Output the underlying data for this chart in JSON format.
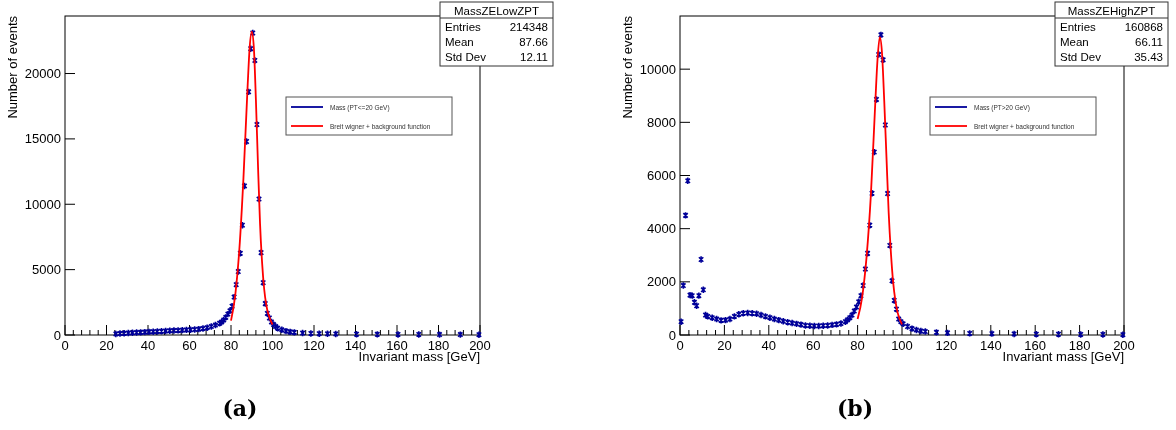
{
  "chart_data": [
    {
      "type": "scatter",
      "xlabel": "Invariant mass [GeV]",
      "ylabel": "Number of events",
      "xlim": [
        0,
        200
      ],
      "xticks": [
        0,
        20,
        40,
        60,
        80,
        100,
        120,
        140,
        160,
        180,
        200
      ],
      "ylim": [
        0,
        24400
      ],
      "yticks": [
        0,
        5000,
        10000,
        15000,
        20000
      ],
      "grid": false,
      "legend": "top right",
      "annotations": [
        "MassZELowZPT",
        "Entries",
        "214348",
        "Mean",
        "87.66",
        "Std Dev",
        "12.11",
        "(a)"
      ],
      "series": [
        {
          "name": "Mass (PT<=20 GeV)",
          "marker": "cross",
          "color": "#000099",
          "x": [
            24.5,
            26.5,
            28.5,
            30.5,
            32.5,
            34.5,
            36.5,
            38.5,
            40.5,
            42.5,
            44.5,
            46.5,
            48.5,
            50.5,
            52.5,
            54.5,
            56.5,
            58.5,
            60.5,
            62.5,
            64.5,
            66.5,
            68.5,
            70.5,
            72.5,
            74.5,
            75.5,
            76.5,
            77.5,
            78.5,
            79.5,
            80.5,
            81.5,
            82.5,
            83.5,
            84.5,
            85.5,
            86.5,
            87.5,
            88.5,
            89.5,
            90.5,
            91.5,
            92.5,
            93.5,
            94.5,
            95.5,
            96.5,
            97.5,
            98.5,
            99.5,
            100.5,
            101.5,
            102.5,
            104.5,
            106.5,
            108.5,
            110.5,
            114.5,
            118.5,
            122.5,
            126.5,
            130.5,
            140.5,
            150.5,
            160.5,
            170.5,
            180.5,
            190.5,
            199.5
          ],
          "values": [
            80,
            110,
            130,
            150,
            170,
            190,
            200,
            220,
            240,
            250,
            270,
            290,
            310,
            330,
            340,
            350,
            370,
            390,
            400,
            420,
            450,
            500,
            560,
            650,
            760,
            900,
            1000,
            1150,
            1350,
            1600,
            1850,
            2200,
            2900,
            3850,
            4850,
            6250,
            8400,
            11400,
            14800,
            18600,
            21900,
            23100,
            21000,
            16100,
            10400,
            6300,
            4000,
            2400,
            1650,
            1300,
            1000,
            800,
            650,
            520,
            400,
            300,
            240,
            200,
            150,
            120,
            100,
            90,
            80,
            60,
            50,
            40,
            40,
            30,
            30,
            20
          ]
        },
        {
          "name": "Breit wigner + background function",
          "type": "line",
          "color": "#ff0000",
          "x": [
            80,
            82,
            84,
            86,
            88,
            89,
            90,
            91,
            92,
            93,
            94,
            95,
            96,
            97,
            98,
            100
          ],
          "values": [
            1100,
            3000,
            6500,
            12000,
            19000,
            22000,
            23200,
            22000,
            18000,
            13000,
            8500,
            5500,
            3500,
            2300,
            1600,
            800
          ]
        }
      ]
    },
    {
      "type": "scatter",
      "xlabel": "Invariant mass [GeV]",
      "ylabel": "Number of events",
      "xlim": [
        0,
        200
      ],
      "xticks": [
        0,
        20,
        40,
        60,
        80,
        100,
        120,
        140,
        160,
        180,
        200
      ],
      "ylim": [
        0,
        12000
      ],
      "yticks": [
        0,
        2000,
        4000,
        6000,
        8000,
        10000
      ],
      "grid": false,
      "legend": "top right",
      "annotations": [
        "MassZEHighZPT",
        "Entries",
        "160868",
        "Mean",
        "66.11",
        "Std Dev",
        "35.43",
        "(b)"
      ],
      "series": [
        {
          "name": "Mass (PT>20 GeV)",
          "marker": "cross",
          "color": "#000099",
          "x": [
            0.5,
            1.5,
            2.5,
            3.5,
            4.5,
            5.5,
            6.5,
            7.5,
            8.5,
            9.5,
            10.5,
            11.5,
            12.5,
            14.5,
            16.5,
            18.5,
            20.5,
            22.5,
            24.5,
            26.5,
            28.5,
            30.5,
            32.5,
            34.5,
            36.5,
            38.5,
            40.5,
            42.5,
            44.5,
            46.5,
            48.5,
            50.5,
            52.5,
            54.5,
            56.5,
            58.5,
            60.5,
            62.5,
            64.5,
            66.5,
            68.5,
            70.5,
            72.5,
            74.5,
            75.5,
            76.5,
            77.5,
            78.5,
            79.5,
            80.5,
            81.5,
            82.5,
            83.5,
            84.5,
            85.5,
            86.5,
            87.5,
            88.5,
            89.5,
            90.5,
            91.5,
            92.5,
            93.5,
            94.5,
            95.5,
            96.5,
            97.5,
            98.5,
            99.5,
            100.5,
            102.5,
            104.5,
            106.5,
            108.5,
            110.5,
            115.5,
            120.5,
            130.5,
            140.5,
            150.5,
            160.5,
            170.5,
            180.5,
            190.5,
            199.5
          ],
          "values": [
            500,
            1860,
            4500,
            5800,
            1500,
            1480,
            1230,
            1100,
            1480,
            2840,
            1700,
            750,
            700,
            650,
            600,
            550,
            560,
            600,
            700,
            780,
            820,
            830,
            820,
            800,
            750,
            700,
            650,
            600,
            560,
            520,
            480,
            450,
            420,
            390,
            360,
            350,
            340,
            340,
            350,
            360,
            380,
            400,
            430,
            500,
            570,
            650,
            750,
            900,
            1050,
            1250,
            1480,
            1860,
            2480,
            3070,
            4130,
            5330,
            6880,
            8860,
            10550,
            11290,
            10350,
            7900,
            5320,
            3370,
            2040,
            1300,
            970,
            600,
            500,
            420,
            320,
            240,
            190,
            150,
            130,
            100,
            80,
            60,
            50,
            40,
            30,
            30,
            20,
            20,
            10
          ]
        },
        {
          "name": "Breit wigner + background function",
          "type": "line",
          "color": "#ff0000",
          "x": [
            80,
            82,
            84,
            86,
            88,
            89,
            90,
            91,
            92,
            93,
            94,
            95,
            96,
            97,
            98,
            100
          ],
          "values": [
            600,
            1400,
            2900,
            5300,
            8800,
            10400,
            11200,
            10600,
            8800,
            6700,
            4600,
            3100,
            2000,
            1300,
            850,
            400
          ]
        }
      ]
    }
  ]
}
